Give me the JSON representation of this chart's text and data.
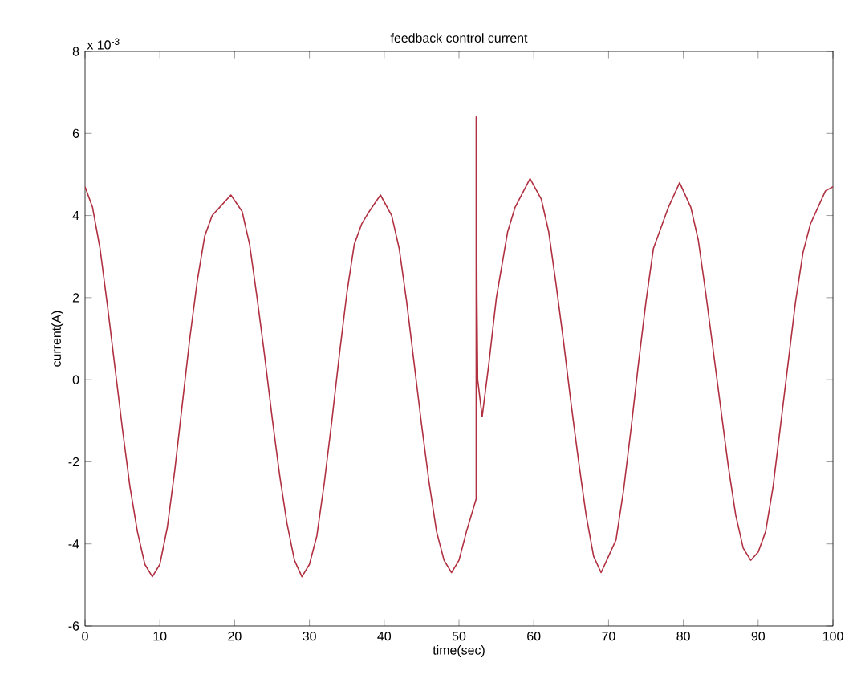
{
  "chart_data": {
    "type": "line",
    "title": "feedback control current",
    "xlabel": "time(sec)",
    "ylabel": "current(A)",
    "annotations": [
      "x 10$^{-3}$"
    ],
    "x": [
      0,
      1,
      2,
      3,
      4,
      5,
      6,
      7,
      8,
      9,
      10,
      11,
      12,
      13,
      14,
      15,
      16,
      17,
      18,
      19.5,
      21,
      22,
      23,
      24,
      25,
      26,
      27,
      28,
      29,
      30,
      31,
      32,
      33,
      34,
      35,
      36,
      37,
      38,
      39.5,
      41,
      42,
      43,
      44,
      45,
      46,
      47,
      48,
      49,
      50,
      51,
      52.3,
      52.3,
      52.4,
      52.5,
      53.1,
      54,
      55,
      56.5,
      57.5,
      59.5,
      61,
      62,
      63,
      64,
      65,
      66,
      67,
      68,
      69,
      70,
      71,
      72,
      73,
      74,
      75,
      76,
      77,
      78,
      79.5,
      81,
      82,
      83,
      84,
      85,
      86,
      87,
      88,
      89,
      90,
      91,
      92,
      93,
      94,
      95,
      96,
      97,
      98,
      99,
      100
    ],
    "values": [
      4.7,
      4.2,
      3.2,
      1.8,
      0.3,
      -1.2,
      -2.6,
      -3.7,
      -4.5,
      -4.8,
      -4.5,
      -3.6,
      -2.2,
      -0.6,
      1.0,
      2.4,
      3.5,
      4.0,
      4.2,
      4.5,
      4.1,
      3.3,
      2.0,
      0.6,
      -0.9,
      -2.3,
      -3.5,
      -4.4,
      -4.8,
      -4.5,
      -3.8,
      -2.5,
      -1.0,
      0.6,
      2.1,
      3.3,
      3.8,
      4.1,
      4.5,
      4.0,
      3.2,
      1.9,
      0.4,
      -1.1,
      -2.5,
      -3.7,
      -4.4,
      -4.7,
      -4.4,
      -3.7,
      -2.9,
      6.4,
      2.0,
      0.0,
      -0.9,
      0.4,
      2.0,
      3.6,
      4.2,
      4.9,
      4.4,
      3.6,
      2.3,
      0.9,
      -0.6,
      -2.0,
      -3.3,
      -4.3,
      -4.7,
      -4.3,
      -3.9,
      -2.7,
      -1.2,
      0.4,
      1.9,
      3.2,
      3.7,
      4.2,
      4.8,
      4.2,
      3.4,
      2.1,
      0.7,
      -0.7,
      -2.1,
      -3.3,
      -4.1,
      -4.4,
      -4.2,
      -3.7,
      -2.6,
      -1.1,
      0.4,
      1.9,
      3.1,
      3.8,
      4.2,
      4.6,
      4.7
    ],
    "color": "#b03040",
    "xlim": [
      0,
      100
    ],
    "ylim": [
      -6,
      8
    ],
    "xticks": [
      0,
      10,
      20,
      30,
      40,
      50,
      60,
      70,
      80,
      90,
      100
    ],
    "yticks": [
      -6,
      -4,
      -2,
      0,
      2,
      4,
      6,
      8
    ],
    "grid": false
  }
}
